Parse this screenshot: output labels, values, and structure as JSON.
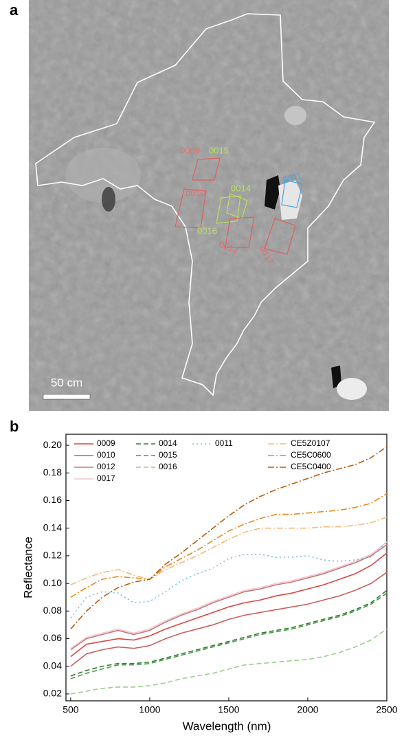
{
  "figure": {
    "panel_labels": [
      "a",
      "b"
    ],
    "scale_bar": "50 cm",
    "image_annotations": [
      "0009",
      "0015",
      "0014",
      "0010",
      "0016",
      "0012",
      "0011",
      "0017"
    ]
  },
  "chart_data": {
    "type": "line",
    "x_label": "Wavelength (nm)",
    "y_label": "Reflectance",
    "x": [
      500,
      600,
      700,
      800,
      900,
      1000,
      1100,
      1200,
      1300,
      1400,
      1500,
      1600,
      1700,
      1800,
      1900,
      2000,
      2100,
      2200,
      2300,
      2400,
      2500
    ],
    "xlim": [
      470,
      2500
    ],
    "ylim": [
      0.015,
      0.208
    ],
    "xticks": [
      500,
      1000,
      1500,
      2000,
      2500
    ],
    "yticks": [
      0.02,
      0.04,
      0.06,
      0.08,
      {
        "value": 0.1,
        "label": "0.10"
      },
      0.12,
      0.14,
      0.16,
      0.18,
      {
        "value": 0.2,
        "label": "0.20"
      }
    ],
    "series": [
      {
        "name": "0009",
        "color": "#d9473f",
        "dash": "solid",
        "values": [
          0.047,
          0.056,
          0.058,
          0.06,
          0.059,
          0.062,
          0.067,
          0.071,
          0.075,
          0.079,
          0.083,
          0.086,
          0.088,
          0.091,
          0.093,
          0.096,
          0.099,
          0.103,
          0.107,
          0.113,
          0.122
        ]
      },
      {
        "name": "0010",
        "color": "#c8605c",
        "dash": "solid",
        "values": [
          0.04,
          0.049,
          0.052,
          0.054,
          0.053,
          0.055,
          0.06,
          0.064,
          0.067,
          0.07,
          0.074,
          0.077,
          0.079,
          0.081,
          0.083,
          0.085,
          0.088,
          0.091,
          0.095,
          0.1,
          0.108
        ]
      },
      {
        "name": "0012",
        "color": "#c47a7a",
        "dash": "solid",
        "values": [
          0.052,
          0.06,
          0.063,
          0.066,
          0.063,
          0.066,
          0.072,
          0.077,
          0.081,
          0.086,
          0.09,
          0.094,
          0.096,
          0.099,
          0.101,
          0.104,
          0.107,
          0.111,
          0.115,
          0.12,
          0.128
        ]
      },
      {
        "name": "0017",
        "color": "#f2c6cf",
        "dash": "solid",
        "values": [
          0.053,
          0.061,
          0.064,
          0.067,
          0.064,
          0.067,
          0.073,
          0.078,
          0.082,
          0.087,
          0.091,
          0.095,
          0.097,
          0.1,
          0.102,
          0.105,
          0.108,
          0.112,
          0.116,
          0.121,
          0.13
        ]
      },
      {
        "name": "0014",
        "color": "#2e7d32",
        "dash": "dashed",
        "values": [
          0.033,
          0.037,
          0.04,
          0.042,
          0.042,
          0.043,
          0.046,
          0.049,
          0.052,
          0.055,
          0.058,
          0.061,
          0.064,
          0.066,
          0.068,
          0.071,
          0.074,
          0.077,
          0.081,
          0.086,
          0.095
        ]
      },
      {
        "name": "0015",
        "color": "#4a9b45",
        "dash": "dashed",
        "values": [
          0.031,
          0.035,
          0.038,
          0.041,
          0.041,
          0.042,
          0.045,
          0.048,
          0.051,
          0.054,
          0.057,
          0.06,
          0.063,
          0.065,
          0.067,
          0.07,
          0.073,
          0.076,
          0.08,
          0.085,
          0.093
        ]
      },
      {
        "name": "0016",
        "color": "#9ccc8e",
        "dash": "dashed",
        "values": [
          0.02,
          0.022,
          0.024,
          0.025,
          0.025,
          0.026,
          0.028,
          0.031,
          0.033,
          0.035,
          0.038,
          0.041,
          0.042,
          0.043,
          0.044,
          0.045,
          0.047,
          0.05,
          0.054,
          0.059,
          0.067
        ]
      },
      {
        "name": "0011",
        "color": "#6ec1ea",
        "dash": "dotted",
        "values": [
          0.075,
          0.09,
          0.094,
          0.093,
          0.086,
          0.087,
          0.094,
          0.102,
          0.107,
          0.111,
          0.118,
          0.121,
          0.121,
          0.119,
          0.119,
          0.12,
          0.117,
          0.116,
          0.117,
          0.119,
          0.13
        ]
      },
      {
        "name": "CE5Z0107",
        "color": "#f5b97a",
        "dash": "dashdot",
        "values": [
          0.099,
          0.104,
          0.108,
          0.11,
          0.106,
          0.103,
          0.11,
          0.115,
          0.12,
          0.126,
          0.132,
          0.137,
          0.14,
          0.14,
          0.14,
          0.14,
          0.141,
          0.141,
          0.142,
          0.144,
          0.148
        ]
      },
      {
        "name": "CE5C0600",
        "color": "#e8891e",
        "dash": "dashdot",
        "values": [
          0.09,
          0.097,
          0.103,
          0.105,
          0.104,
          0.103,
          0.112,
          0.118,
          0.124,
          0.131,
          0.138,
          0.143,
          0.147,
          0.15,
          0.15,
          0.151,
          0.152,
          0.153,
          0.155,
          0.158,
          0.165
        ]
      },
      {
        "name": "CE5C0400",
        "color": "#b85c10",
        "dash": "dashdot",
        "values": [
          0.067,
          0.08,
          0.09,
          0.097,
          0.101,
          0.103,
          0.114,
          0.122,
          0.131,
          0.14,
          0.149,
          0.157,
          0.163,
          0.168,
          0.172,
          0.176,
          0.18,
          0.183,
          0.186,
          0.191,
          0.199
        ]
      }
    ]
  }
}
